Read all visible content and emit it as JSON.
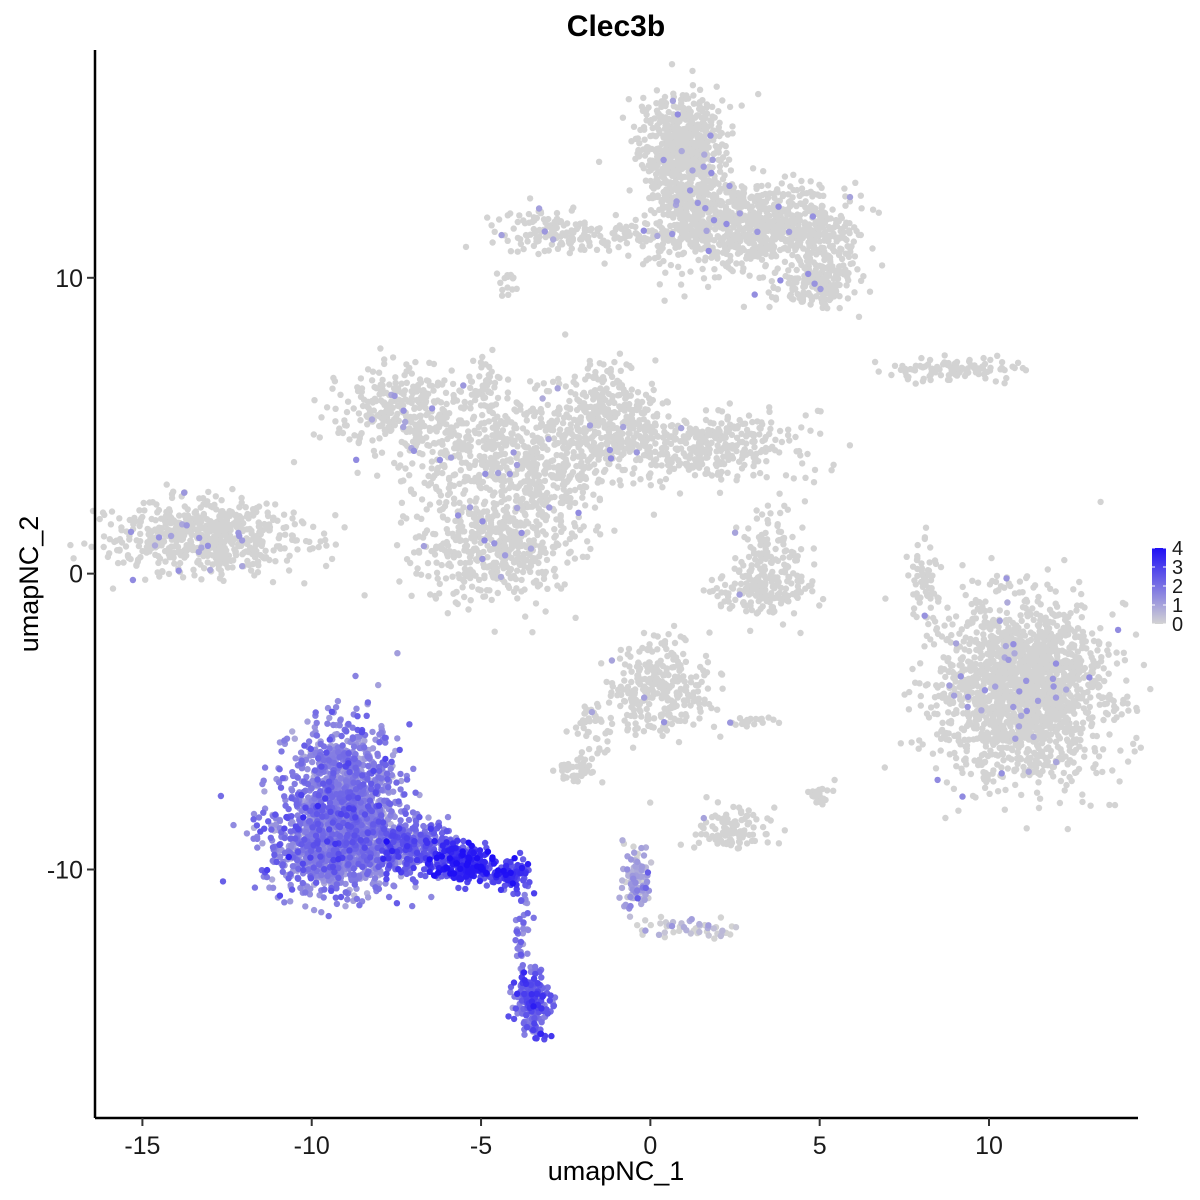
{
  "chart_data": {
    "type": "scatter",
    "title": "Clec3b",
    "xlabel": "umapNC_1",
    "ylabel": "umapNC_2",
    "xlim": [
      -16.4,
      14.4
    ],
    "ylim": [
      -18.4,
      17.7
    ],
    "xticks": [
      -15,
      -10,
      -5,
      0,
      5,
      10
    ],
    "xtick_labels": [
      "-15",
      "-10",
      "-5",
      "0",
      "5",
      "10"
    ],
    "yticks": [
      -10,
      0,
      10
    ],
    "ytick_labels": [
      "-10",
      "0",
      "10"
    ],
    "grid": false,
    "legend": {
      "placement": "right",
      "type": "continuous colorbar",
      "range": [
        0,
        4
      ],
      "ticks": [
        0,
        1,
        2,
        3,
        4
      ],
      "tick_labels": [
        "0",
        "1",
        "2",
        "3",
        "4"
      ],
      "low_color": "#d3d3d3",
      "high_color": "#1f0ff5"
    },
    "point_color_base": "#d3d3d3",
    "clusters": [
      {
        "cx": 0.9,
        "cy": 14.6,
        "sx": 0.6,
        "sy": 0.8,
        "n": 500,
        "expr": 0
      },
      {
        "cx": 1.1,
        "cy": 12.6,
        "sx": 0.6,
        "sy": 1.0,
        "n": 400,
        "expr": 0
      },
      {
        "cx": 3.0,
        "cy": 11.8,
        "sx": 1.1,
        "sy": 0.7,
        "n": 600,
        "expr": 0
      },
      {
        "cx": 5.1,
        "cy": 11.3,
        "sx": 0.6,
        "sy": 0.7,
        "n": 200,
        "expr": 0
      },
      {
        "cx": 4.8,
        "cy": 9.7,
        "sx": 0.6,
        "sy": 0.4,
        "n": 150,
        "expr": 0
      },
      {
        "cx": -1.5,
        "cy": 11.4,
        "sx": 1.6,
        "sy": 0.3,
        "n": 150,
        "expr": 0
      },
      {
        "cx": -3.0,
        "cy": 11.7,
        "sx": 0.5,
        "sy": 0.4,
        "n": 60,
        "expr": 0
      },
      {
        "cx": -4.2,
        "cy": 9.8,
        "sx": 0.2,
        "sy": 0.2,
        "n": 15,
        "expr": 0
      },
      {
        "cx": 9.0,
        "cy": 6.9,
        "sx": 1.0,
        "sy": 0.2,
        "n": 100,
        "expr": 0
      },
      {
        "cx": -7.2,
        "cy": 5.5,
        "sx": 1.0,
        "sy": 0.7,
        "n": 300,
        "expr": 0
      },
      {
        "cx": -5.0,
        "cy": 3.8,
        "sx": 1.3,
        "sy": 1.0,
        "n": 350,
        "expr": 0
      },
      {
        "cx": -1.2,
        "cy": 5.3,
        "sx": 0.7,
        "sy": 0.8,
        "n": 300,
        "expr": 0
      },
      {
        "cx": 1.5,
        "cy": 4.3,
        "sx": 1.4,
        "sy": 0.6,
        "n": 400,
        "expr": 0
      },
      {
        "cx": -2.8,
        "cy": 3.5,
        "sx": 1.0,
        "sy": 1.2,
        "n": 300,
        "expr": 0
      },
      {
        "cx": -4.7,
        "cy": 0.8,
        "sx": 1.1,
        "sy": 0.9,
        "n": 450,
        "expr": 0
      },
      {
        "cx": -4.8,
        "cy": 6.4,
        "sx": 0.2,
        "sy": 0.5,
        "n": 40,
        "expr": 0
      },
      {
        "cx": -13.2,
        "cy": 1.2,
        "sx": 1.4,
        "sy": 0.6,
        "n": 600,
        "expr": 0
      },
      {
        "cx": 3.6,
        "cy": 0.3,
        "sx": 0.5,
        "sy": 0.9,
        "n": 150,
        "expr": 0
      },
      {
        "cx": 3.3,
        "cy": -0.6,
        "sx": 0.8,
        "sy": 0.3,
        "n": 100,
        "expr": 0
      },
      {
        "cx": 8.1,
        "cy": -0.3,
        "sx": 0.2,
        "sy": 0.8,
        "n": 60,
        "expr": 0
      },
      {
        "cx": 11.0,
        "cy": -4.0,
        "sx": 1.2,
        "sy": 1.5,
        "n": 1800,
        "expr": 0
      },
      {
        "cx": 0.4,
        "cy": -3.9,
        "sx": 0.7,
        "sy": 0.8,
        "n": 300,
        "expr": 0
      },
      {
        "cx": -1.6,
        "cy": -5.3,
        "sx": 0.3,
        "sy": 0.6,
        "n": 50,
        "expr": 0
      },
      {
        "cx": -2.3,
        "cy": -6.7,
        "sx": 0.4,
        "sy": 0.2,
        "n": 40,
        "expr": 0
      },
      {
        "cx": 2.4,
        "cy": -8.7,
        "sx": 0.5,
        "sy": 0.4,
        "n": 100,
        "expr": 0
      },
      {
        "cx": 5.0,
        "cy": -7.5,
        "sx": 0.2,
        "sy": 0.3,
        "n": 25,
        "expr": 0
      },
      {
        "cx": 2.9,
        "cy": -5.0,
        "sx": 0.4,
        "sy": 0.1,
        "n": 20,
        "expr": 0
      },
      {
        "cx": 1.2,
        "cy": -12.0,
        "sx": 0.9,
        "sy": 0.2,
        "n": 50,
        "expr": 0.1
      },
      {
        "cx": -0.4,
        "cy": -10.3,
        "sx": 0.2,
        "sy": 0.6,
        "n": 100,
        "expr": 0.9
      },
      {
        "cx": -9.0,
        "cy": -7.4,
        "sx": 0.8,
        "sy": 1.1,
        "n": 1000,
        "expr": 1.6
      },
      {
        "cx": -9.3,
        "cy": -9.2,
        "sx": 1.0,
        "sy": 0.8,
        "n": 1000,
        "expr": 1.6
      },
      {
        "cx": -7.0,
        "cy": -9.2,
        "sx": 0.7,
        "sy": 0.4,
        "n": 300,
        "expr": 2.2
      },
      {
        "cx": -5.5,
        "cy": -9.8,
        "sx": 0.5,
        "sy": 0.3,
        "n": 250,
        "expr": 3.2
      },
      {
        "cx": -4.2,
        "cy": -10.2,
        "sx": 0.3,
        "sy": 0.2,
        "n": 120,
        "expr": 2.8
      },
      {
        "cx": -3.8,
        "cy": -12.0,
        "sx": 0.15,
        "sy": 0.8,
        "n": 40,
        "expr": 1.8
      },
      {
        "cx": -3.5,
        "cy": -14.5,
        "sx": 0.25,
        "sy": 0.5,
        "n": 200,
        "expr": 2.3
      }
    ]
  }
}
